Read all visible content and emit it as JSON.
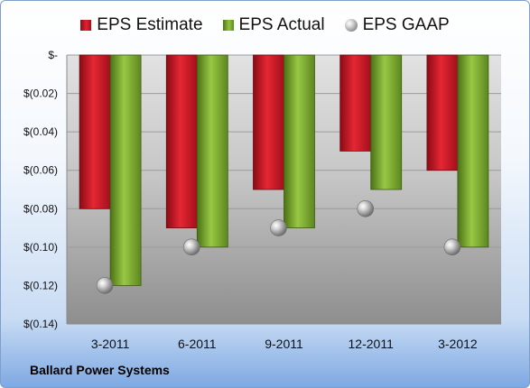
{
  "chart_data": {
    "type": "bar",
    "categories": [
      "3-2011",
      "6-2011",
      "9-2011",
      "12-2011",
      "3-2012"
    ],
    "series": [
      {
        "name": "EPS Estimate",
        "kind": "bar",
        "color": "#d9202c",
        "values": [
          -0.08,
          -0.09,
          -0.07,
          -0.05,
          -0.06
        ]
      },
      {
        "name": "EPS Actual",
        "kind": "bar",
        "color": "#8dbd3c",
        "values": [
          -0.12,
          -0.1,
          -0.09,
          -0.07,
          -0.1
        ]
      },
      {
        "name": "EPS GAAP",
        "kind": "marker",
        "color": "#9a9a9a",
        "values": [
          -0.12,
          -0.1,
          -0.09,
          -0.08,
          -0.1
        ]
      }
    ],
    "yticks": [
      "$-",
      "$(0.02)",
      "$(0.04)",
      "$(0.06)",
      "$(0.08)",
      "$(0.10)",
      "$(0.12)",
      "$(0.14)"
    ],
    "ylim": [
      -0.14,
      0
    ],
    "grid": true,
    "legend_position": "top"
  },
  "company": "Ballard Power Systems"
}
